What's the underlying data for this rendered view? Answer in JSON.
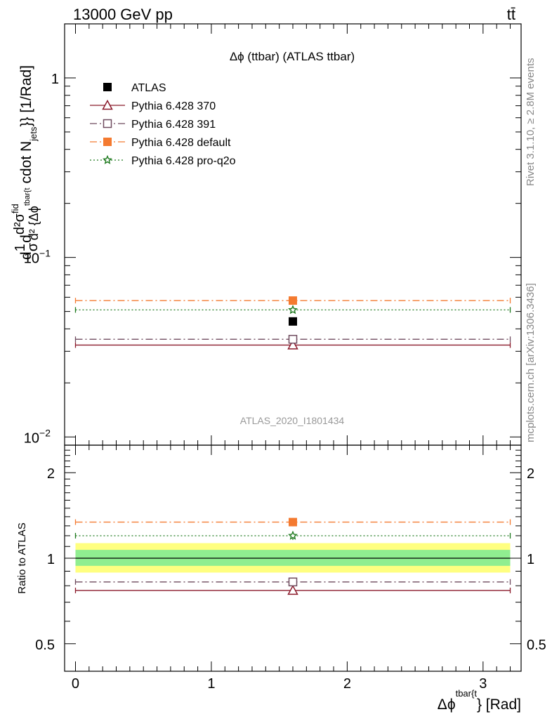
{
  "header": {
    "energy_label": "13000 GeV pp",
    "process_label": "tt̄"
  },
  "side_labels": {
    "rivet": "Rivet 3.1.10, ≥ 2.8M events",
    "mcplots": "mcplots.cern.ch [arXiv:1306.3436]"
  },
  "chart_data": [
    {
      "type": "line",
      "panel": "main",
      "title": "Δϕ (ttbar) (ATLAS ttbar)",
      "ylabel": "d(1/σ)d(d²σ^fid/d²{Δϕ^tbar{t}} cdot N_jets}) [1/Rad]",
      "ylabel_parts": {
        "d": "d",
        "one": "1",
        "sigma": "σ",
        "d2": "d",
        "d2sigma": "d²σ",
        "fid": "fid",
        "d2den": "d² {Δϕ",
        "tbar": "tbar{t",
        "cdot": "cdot N",
        "jets": "jets",
        "tail": "}} [1/Rad]"
      },
      "yscale": "log",
      "ylim": [
        0.009,
        2.0
      ],
      "xlim": [
        -0.08,
        3.28
      ],
      "yticks": [
        {
          "value": 1,
          "label": "1"
        },
        {
          "value": 0.1,
          "label": "10",
          "exp": "−1"
        },
        {
          "value": 0.01,
          "label": "10",
          "exp": "−2"
        }
      ],
      "watermark": "ATLAS_2020_I1801434",
      "legend_position": "top-left",
      "series": [
        {
          "name": "ATLAS",
          "x": 1.6,
          "xlow": 0,
          "xhigh": 3.2,
          "y": 0.044,
          "color": "#000000",
          "marker": "square-filled",
          "dash": ""
        },
        {
          "name": "Pythia 6.428 370",
          "x": 1.6,
          "xlow": 0,
          "xhigh": 3.2,
          "y": 0.0325,
          "color": "#8b1a2b",
          "marker": "triangle-open",
          "dash": ""
        },
        {
          "name": "Pythia 6.428 391",
          "x": 1.6,
          "xlow": 0,
          "xhigh": 3.2,
          "y": 0.035,
          "color": "#6e4a5e",
          "marker": "square-open",
          "dash": "10,4,2,4"
        },
        {
          "name": "Pythia 6.428 default",
          "x": 1.6,
          "xlow": 0,
          "xhigh": 3.2,
          "y": 0.0575,
          "color": "#f47a30",
          "marker": "square-filled",
          "dash": "10,4,2,4"
        },
        {
          "name": "Pythia 6.428 pro-q2o",
          "x": 1.6,
          "xlow": 0,
          "xhigh": 3.2,
          "y": 0.051,
          "color": "#1f7a1f",
          "marker": "star-open",
          "dash": "2,3"
        }
      ]
    },
    {
      "type": "line",
      "panel": "ratio",
      "ylabel": "Ratio to ATLAS",
      "xlabel": "Δϕ^tbar{t}} [Rad]",
      "xlabel_parts": {
        "main": "Δϕ",
        "sup": "tbar{t",
        "tail": "} [Rad]"
      },
      "yscale": "log",
      "ylim": [
        0.4,
        2.5
      ],
      "xlim": [
        -0.08,
        3.28
      ],
      "xticks": [
        0,
        1,
        2,
        3
      ],
      "xtick_labels": [
        "0",
        "1",
        "2",
        "3"
      ],
      "yticks": [
        0.5,
        1,
        2
      ],
      "ytick_labels": [
        "0.5",
        "1",
        "2"
      ],
      "bands": [
        {
          "name": "ATLAS total uncertainty",
          "low": 0.89,
          "high": 1.13,
          "color": "#ffff80"
        },
        {
          "name": "ATLAS stat uncertainty",
          "low": 0.94,
          "high": 1.07,
          "color": "#90ee90"
        }
      ],
      "series": [
        {
          "name": "ATLAS",
          "y": 1.0,
          "color": "#000000",
          "marker": "",
          "dash": ""
        },
        {
          "name": "Pythia 6.428 370",
          "y": 0.77,
          "color": "#8b1a2b",
          "marker": "triangle-open",
          "dash": ""
        },
        {
          "name": "Pythia 6.428 391",
          "y": 0.825,
          "color": "#6e4a5e",
          "marker": "square-open",
          "dash": "10,4,2,4"
        },
        {
          "name": "Pythia 6.428 default",
          "y": 1.34,
          "color": "#f47a30",
          "marker": "square-filled",
          "dash": "10,4,2,4"
        },
        {
          "name": "Pythia 6.428 pro-q2o",
          "y": 1.2,
          "color": "#1f7a1f",
          "marker": "star-open",
          "dash": "2,3"
        }
      ]
    }
  ]
}
